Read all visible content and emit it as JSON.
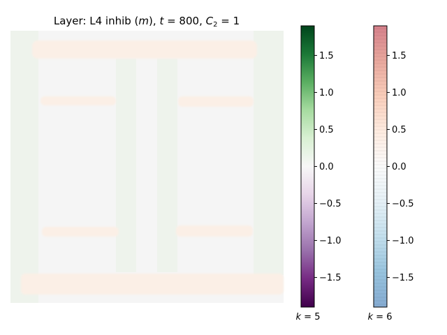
{
  "chart_data": [
    {
      "type": "heatmap",
      "title": "Layer: L4 inhib (m), t = 800, C₂ = 1",
      "title_parts": {
        "prefix": "Layer: L4 inhib (",
        "m": "m",
        "mid1": "), ",
        "t": "t",
        "mid2": " = 800, ",
        "C": "C",
        "sub": "2",
        "suffix": " = 1"
      },
      "grid": false,
      "axes_visible": false,
      "value_range": [
        -1.9,
        1.9
      ],
      "description_of_values": "near-zero field with faint positive bands and faint negative (green) columns",
      "colors": {
        "background": "#f5f5f5",
        "warm_band": "#fbefe6",
        "green_column": "#eef3ec"
      }
    },
    {
      "type": "colorbar",
      "label": "k = 5",
      "label_parts": {
        "k": "k",
        "rest": " = 5"
      },
      "colormap": "PRGn",
      "range": [
        -1.9,
        1.9
      ],
      "ticks": [
        1.5,
        1.0,
        0.5,
        0.0,
        -0.5,
        -1.0,
        -1.5
      ],
      "tick_labels": [
        "1.5",
        "1.0",
        "0.5",
        "0.0",
        "−0.5",
        "−1.0",
        "−1.5"
      ],
      "stops": [
        "#00441b",
        "#1b7837",
        "#5aae61",
        "#a6dba0",
        "#d9f0d3",
        "#f7f7f7",
        "#e7d4e8",
        "#c2a5cf",
        "#9970ab",
        "#762a83",
        "#40004b"
      ]
    },
    {
      "type": "colorbar",
      "label": "k = 6",
      "label_parts": {
        "k": "k",
        "rest": " = 6"
      },
      "colormap": "RdBu_r (semi-transparent)",
      "range": [
        -1.9,
        1.9
      ],
      "ticks": [
        1.5,
        1.0,
        0.5,
        0.0,
        -0.5,
        -1.0,
        -1.5
      ],
      "tick_labels": [
        "1.5",
        "1.0",
        "0.5",
        "0.0",
        "−0.5",
        "−1.0",
        "−1.5"
      ],
      "stops": [
        "#b2182b",
        "#d6604d",
        "#f4a582",
        "#fddbc7",
        "#f7f7f7",
        "#d1e5f0",
        "#92c5de",
        "#4393c3",
        "#2166ac"
      ],
      "opacity": 0.55
    }
  ]
}
